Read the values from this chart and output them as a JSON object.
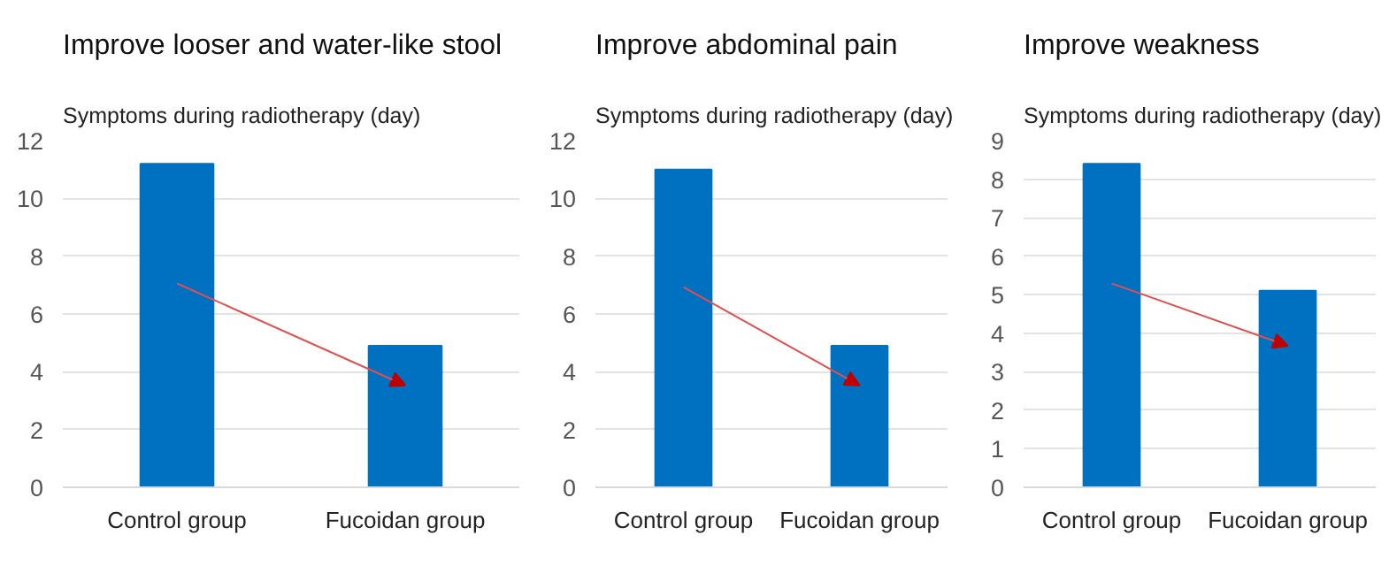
{
  "chart_data": [
    {
      "type": "bar",
      "title": "Improve looser and water-like stool",
      "ylabel": "Symptoms during radiotherapy (day)",
      "categories": [
        "Control group",
        "Fucoidan group"
      ],
      "values": [
        11.2,
        4.9
      ],
      "color": "#0070c0",
      "ylim": [
        0,
        12
      ],
      "yticks": [
        0,
        2,
        4,
        6,
        8,
        10,
        12
      ],
      "grid": "y",
      "legend": false
    },
    {
      "type": "bar",
      "title": "Improve abdominal pain",
      "ylabel": "Symptoms during radiotherapy (day)",
      "categories": [
        "Control group",
        "Fucoidan group"
      ],
      "values": [
        11.0,
        4.9
      ],
      "color": "#0070c0",
      "ylim": [
        0,
        12
      ],
      "yticks": [
        0,
        2,
        4,
        6,
        8,
        10,
        12
      ],
      "grid": "y",
      "legend": false
    },
    {
      "type": "bar",
      "title": "Improve weakness",
      "ylabel": "Symptoms during radiotherapy (day)",
      "categories": [
        "Control group",
        "Fucoidan group"
      ],
      "values": [
        8.4,
        5.1
      ],
      "color": "#0070c0",
      "ylim": [
        0,
        9
      ],
      "yticks": [
        0,
        1,
        2,
        3,
        4,
        5,
        6,
        7,
        8,
        9
      ],
      "grid": "y",
      "legend": false
    }
  ]
}
